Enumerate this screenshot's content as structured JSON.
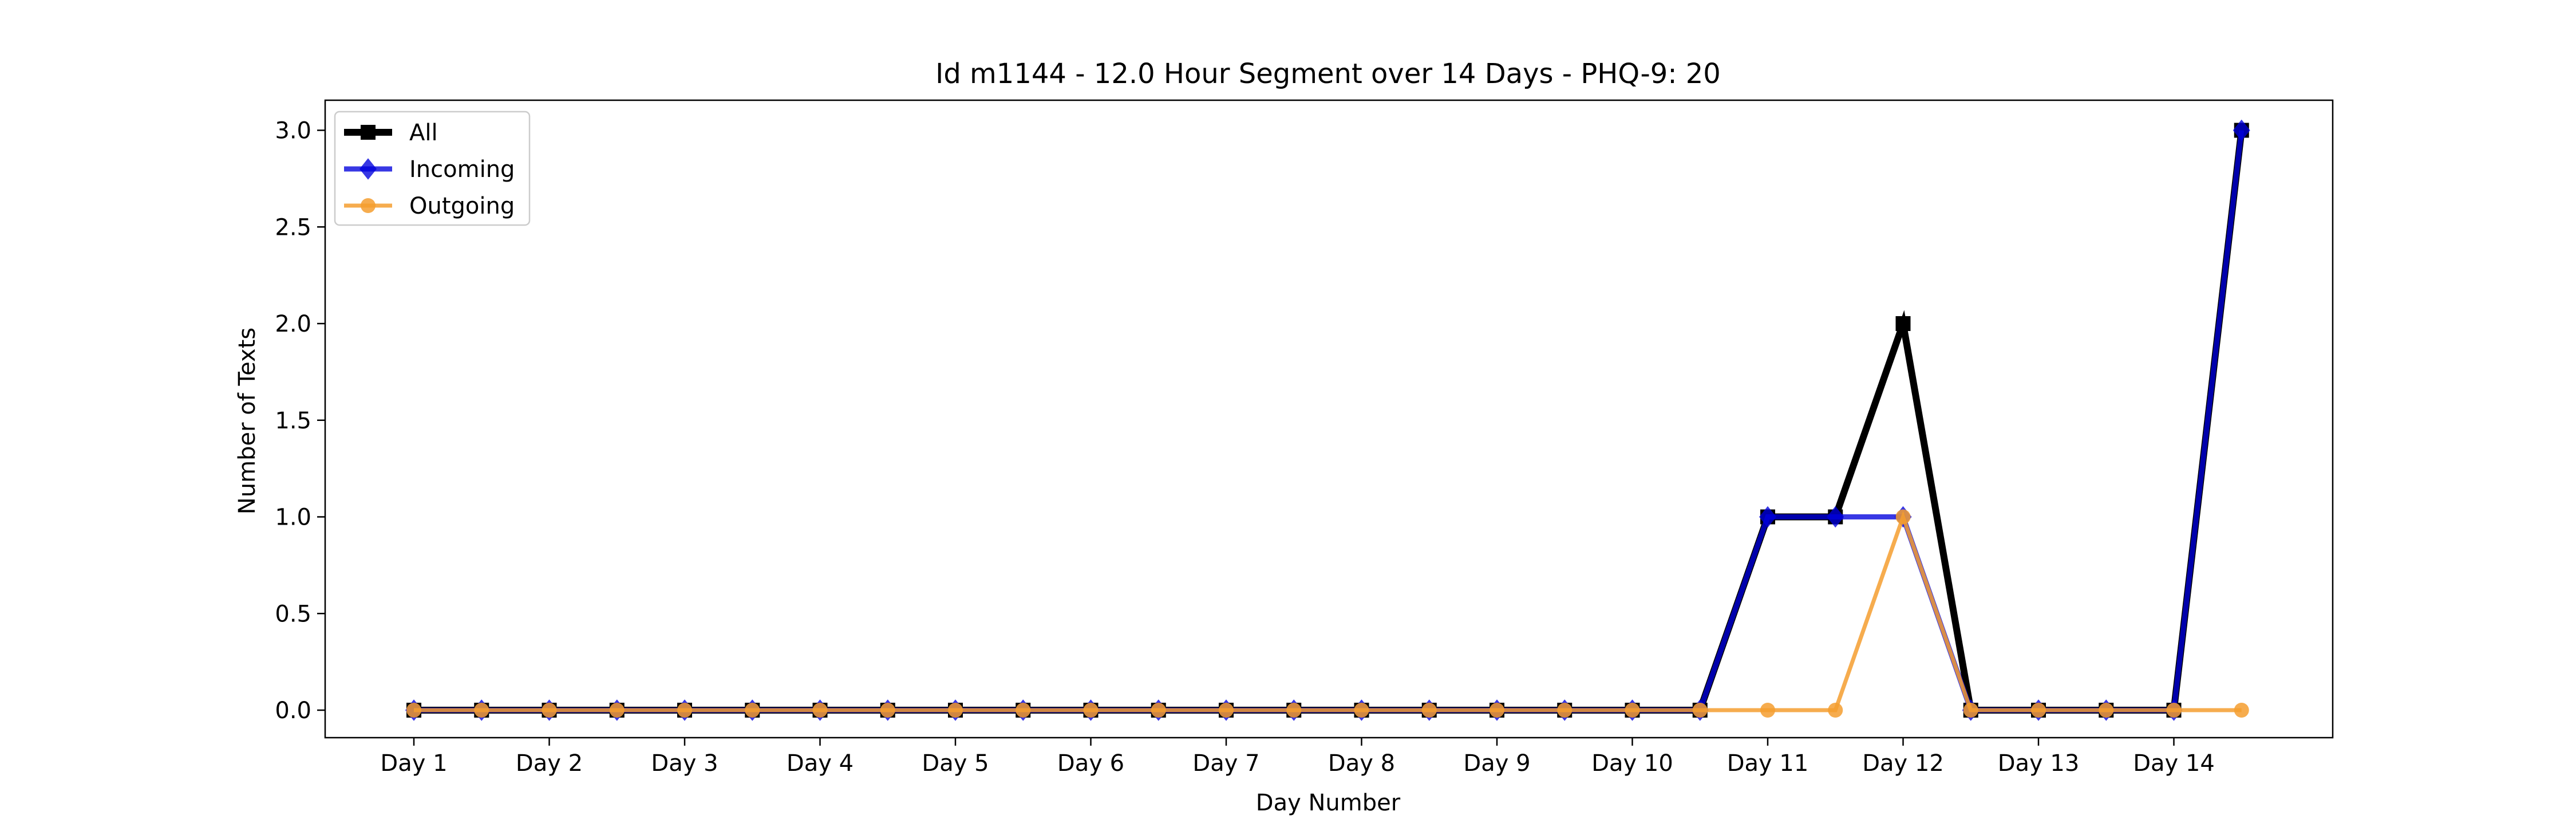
{
  "chart_data": {
    "type": "line",
    "title": "Id m1144 - 12.0 Hour Segment over 14 Days - PHQ-9: 20",
    "xlabel": "Day Number",
    "ylabel": "Number of Texts",
    "ylim": [
      0.0,
      3.0
    ],
    "yticks": [
      "0.0",
      "0.5",
      "1.0",
      "1.5",
      "2.0",
      "2.5",
      "3.0"
    ],
    "x_tick_labels": [
      "Day 1",
      "Day 2",
      "Day 3",
      "Day 4",
      "Day 5",
      "Day 6",
      "Day 7",
      "Day 8",
      "Day 9",
      "Day 10",
      "Day 11",
      "Day 12",
      "Day 13",
      "Day 14"
    ],
    "grid": false,
    "legend_position": "top-left",
    "series": [
      {
        "name": "All",
        "color": "#000000",
        "marker": "square",
        "values": [
          0,
          0,
          0,
          0,
          0,
          0,
          0,
          0,
          0,
          0,
          0,
          0,
          0,
          0,
          0,
          0,
          0,
          0,
          0,
          0,
          1,
          1,
          2,
          0,
          0,
          0,
          0,
          3
        ]
      },
      {
        "name": "Incoming",
        "color": "#0000dd",
        "marker": "diamond",
        "values": [
          0,
          0,
          0,
          0,
          0,
          0,
          0,
          0,
          0,
          0,
          0,
          0,
          0,
          0,
          0,
          0,
          0,
          0,
          0,
          0,
          1,
          1,
          1,
          0,
          0,
          0,
          0,
          3
        ]
      },
      {
        "name": "Outgoing",
        "color": "#f59e2f",
        "marker": "circle",
        "values": [
          0,
          0,
          0,
          0,
          0,
          0,
          0,
          0,
          0,
          0,
          0,
          0,
          0,
          0,
          0,
          0,
          0,
          0,
          0,
          0,
          0,
          0,
          1,
          0,
          0,
          0,
          0,
          0
        ]
      }
    ]
  }
}
